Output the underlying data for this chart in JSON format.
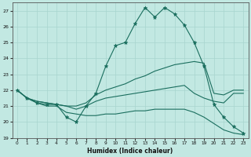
{
  "title": "",
  "xlabel": "Humidex (Indice chaleur)",
  "xlim": [
    -0.5,
    23.5
  ],
  "ylim": [
    19,
    27.5
  ],
  "yticks": [
    19,
    20,
    21,
    22,
    23,
    24,
    25,
    26,
    27
  ],
  "xticks": [
    0,
    1,
    2,
    3,
    4,
    5,
    6,
    7,
    8,
    9,
    10,
    11,
    12,
    13,
    14,
    15,
    16,
    17,
    18,
    19,
    20,
    21,
    22,
    23
  ],
  "bg_color": "#c2e8e2",
  "grid_color": "#a8d5ce",
  "line_color": "#1a6e5e",
  "line1_main": [
    22.0,
    21.5,
    21.2,
    21.1,
    21.1,
    20.3,
    20.0,
    21.0,
    21.8,
    23.5,
    24.8,
    25.0,
    26.2,
    27.2,
    26.6,
    27.2,
    26.8,
    26.1,
    25.0,
    23.5,
    21.1,
    20.3,
    19.7,
    19.3
  ],
  "line2": [
    22.0,
    21.5,
    21.3,
    21.2,
    21.1,
    21.0,
    21.0,
    21.2,
    21.7,
    22.0,
    22.2,
    22.4,
    22.7,
    22.9,
    23.2,
    23.4,
    23.6,
    23.7,
    23.8,
    23.7,
    21.8,
    21.7,
    22.0,
    22.0
  ],
  "line3": [
    22.0,
    21.5,
    21.3,
    21.2,
    21.1,
    21.0,
    20.8,
    21.0,
    21.3,
    21.5,
    21.6,
    21.7,
    21.8,
    21.9,
    22.0,
    22.1,
    22.2,
    22.3,
    21.8,
    21.5,
    21.3,
    21.2,
    21.8,
    21.8
  ],
  "line4": [
    22.0,
    21.5,
    21.2,
    21.0,
    21.0,
    20.6,
    20.5,
    20.4,
    20.4,
    20.5,
    20.5,
    20.6,
    20.7,
    20.7,
    20.8,
    20.8,
    20.8,
    20.8,
    20.6,
    20.3,
    19.9,
    19.5,
    19.3,
    19.2
  ]
}
